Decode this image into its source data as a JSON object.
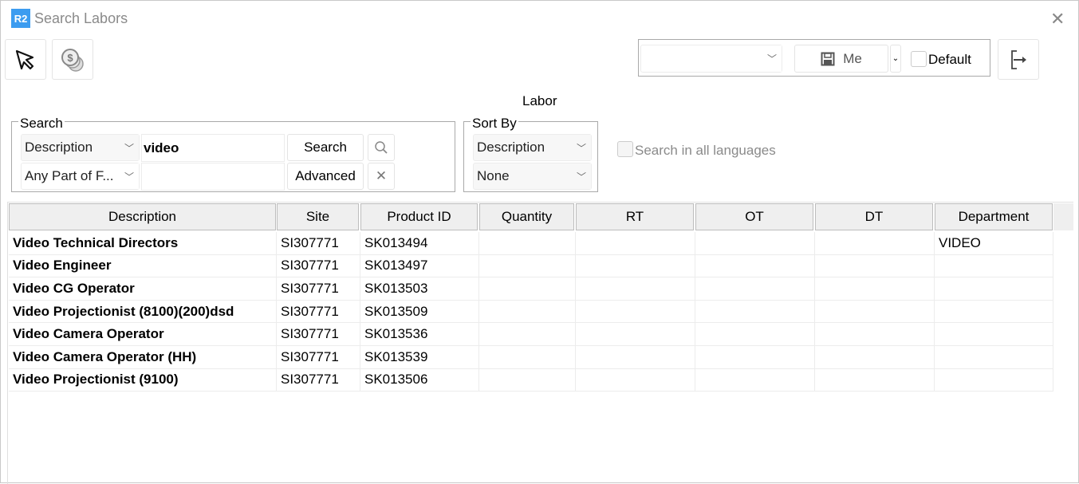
{
  "window": {
    "logo": "R2",
    "title": "Search Labors",
    "close": "✕"
  },
  "toolbar": {
    "select_icon": "cursor-arrow-icon",
    "pricing_icon": "coins-icon",
    "layout_select": "",
    "save_label": "Me",
    "default_label": "Default",
    "default_checked": false,
    "exit_icon": "exit-icon"
  },
  "section_title": "Labor",
  "search": {
    "legend": "Search",
    "field": "Description",
    "match": "Any Part of F...",
    "query": "video",
    "query2": "",
    "search_label": "Search",
    "advanced_label": "Advanced"
  },
  "sort": {
    "legend": "Sort By",
    "first": "Description",
    "second": "None"
  },
  "all_languages": {
    "label": "Search in all languages",
    "checked": false,
    "disabled": true
  },
  "table": {
    "columns": [
      "Description",
      "Site",
      "Product ID",
      "Quantity",
      "RT",
      "OT",
      "DT",
      "Department"
    ],
    "rows": [
      [
        "Video Technical Directors",
        "SI307771",
        "SK013494",
        "",
        "",
        "",
        "",
        "VIDEO"
      ],
      [
        "Video Engineer",
        "SI307771",
        "SK013497",
        "",
        "",
        "",
        "",
        ""
      ],
      [
        "Video CG Operator",
        "SI307771",
        "SK013503",
        "",
        "",
        "",
        "",
        ""
      ],
      [
        "Video Projectionist (8100)(200)dsd",
        "SI307771",
        "SK013509",
        "",
        "",
        "",
        "",
        ""
      ],
      [
        "Video Camera Operator",
        "SI307771",
        "SK013536",
        "",
        "",
        "",
        "",
        ""
      ],
      [
        "Video Camera Operator (HH)",
        "SI307771",
        "SK013539",
        "",
        "",
        "",
        "",
        ""
      ],
      [
        "Video Projectionist (9100)",
        "SI307771",
        "SK013506",
        "",
        "",
        "",
        "",
        ""
      ]
    ]
  }
}
